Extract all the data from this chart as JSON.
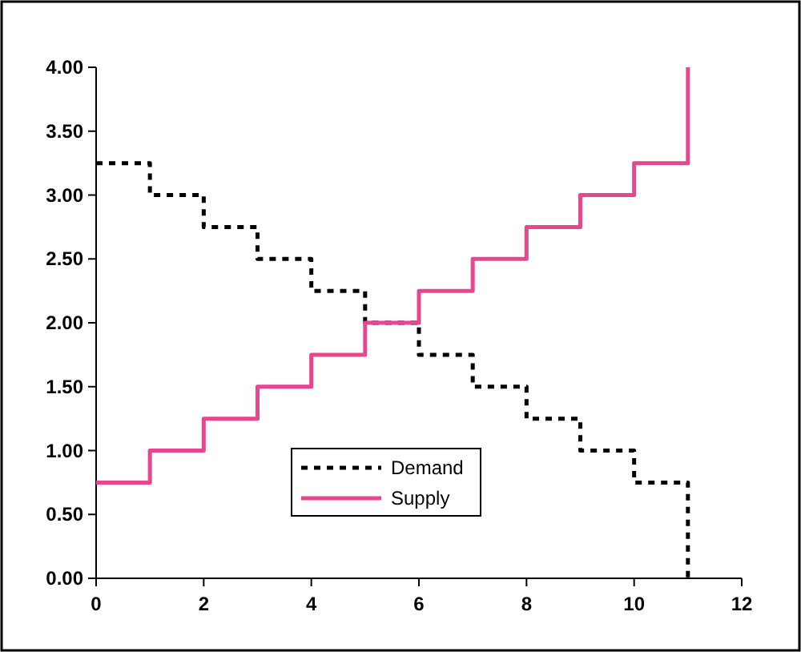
{
  "chart_data": {
    "type": "step",
    "x": [
      0,
      1,
      2,
      3,
      4,
      5,
      6,
      7,
      8,
      9,
      10,
      11
    ],
    "series": [
      {
        "name": "Demand",
        "color": "#000000",
        "line_style": "dotted",
        "values": [
          3.25,
          3.0,
          2.75,
          2.5,
          2.25,
          2.0,
          1.75,
          1.5,
          1.25,
          1.0,
          0.75,
          0
        ]
      },
      {
        "name": "Supply",
        "color": "#e8468f",
        "line_style": "solid",
        "values": [
          0.75,
          1.0,
          1.25,
          1.5,
          1.75,
          2.0,
          2.25,
          2.5,
          2.75,
          3.0,
          3.25,
          4.0
        ]
      }
    ],
    "xlim": [
      0,
      12
    ],
    "xticks": [
      0,
      2,
      4,
      6,
      8,
      10,
      12
    ],
    "ylim": [
      0,
      4
    ],
    "yticks": [
      {
        "value": 0,
        "label": "0.00"
      },
      {
        "value": 0.5,
        "label": "0.50"
      },
      {
        "value": 1,
        "label": "1.00"
      },
      {
        "value": 1.5,
        "label": "1.50"
      },
      {
        "value": 2,
        "label": "2.00"
      },
      {
        "value": 2.5,
        "label": "2.50"
      },
      {
        "value": 3,
        "label": "3.00"
      },
      {
        "value": 3.5,
        "label": "3.50"
      },
      {
        "value": 4,
        "label": "4.00"
      }
    ],
    "grid": false,
    "legend": "bottom",
    "marker": "none"
  }
}
